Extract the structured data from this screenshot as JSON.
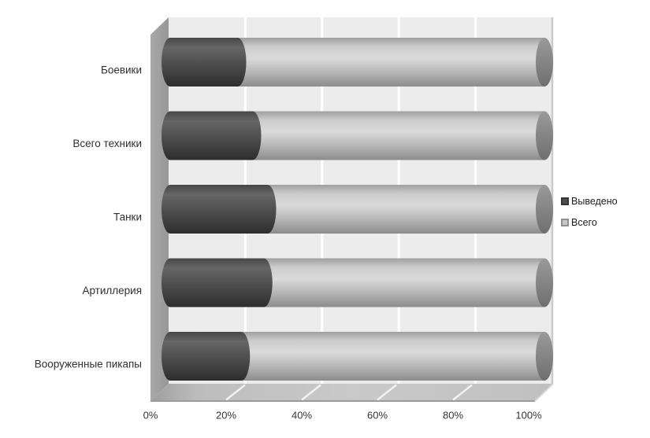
{
  "chart_data": {
    "type": "bar",
    "subtype": "horizontal-100%-stacked-3d-cylinders",
    "title": "",
    "xlabel": "",
    "ylabel": "",
    "categories": [
      "Боевики",
      "Всего техники",
      "Танки",
      "Артиллерия",
      "Вооруженные пикапы"
    ],
    "series": [
      {
        "name": "Выведено",
        "color": "#4f4f4f",
        "values": [
          18,
          22,
          26,
          25,
          19
        ]
      },
      {
        "name": "Всего",
        "color": "#c6c6c6",
        "values": [
          82,
          78,
          74,
          75,
          81
        ]
      }
    ],
    "x_ticks": [
      "0%",
      "20%",
      "40%",
      "60%",
      "80%",
      "100%"
    ],
    "xlim": [
      0,
      100
    ],
    "unit": "%",
    "grid": true,
    "legend_position": "right",
    "values_note": "percent of bar length; each row totals 100%"
  },
  "colors": {
    "wall": "#ececec",
    "wall_edge": "#c9c9c9",
    "gridline": "#ffffff",
    "left_wall": "#a2a2a2",
    "floor": "#c2c2c2",
    "text": "#2f2f2f"
  }
}
